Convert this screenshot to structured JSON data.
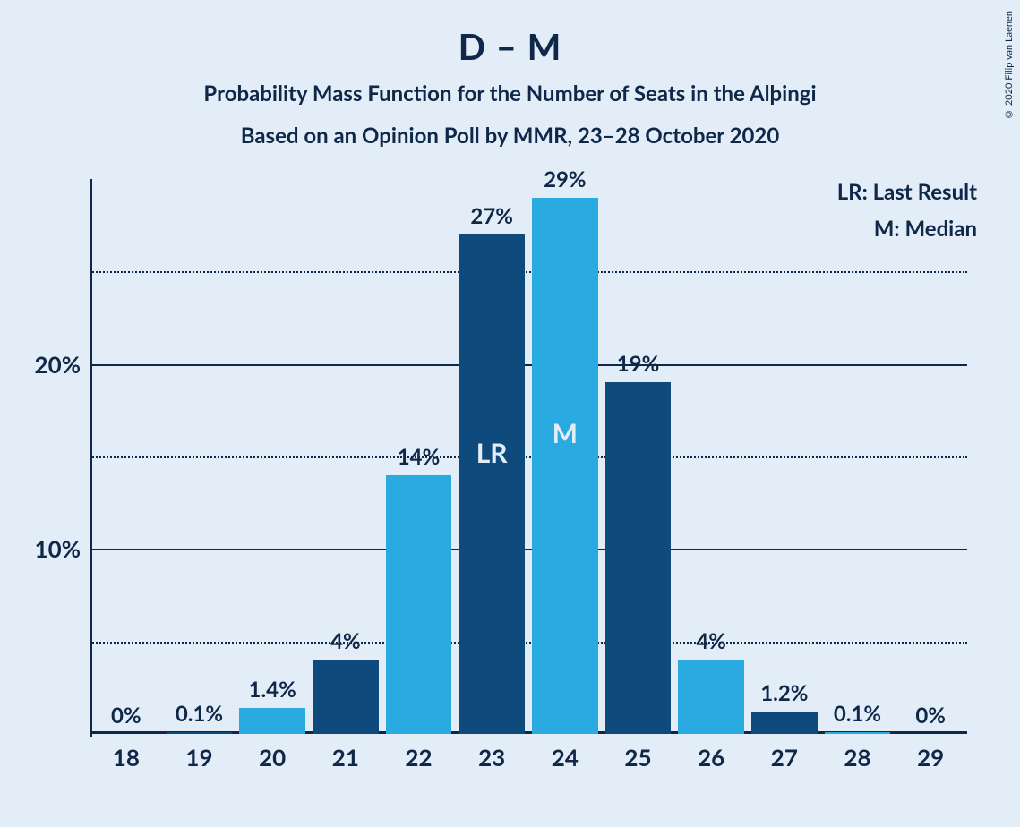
{
  "title": "D – M",
  "subtitle": "Probability Mass Function for the Number of Seats in the Alþingi",
  "poll_line": "Based on an Opinion Poll by MMR, 23–28 October 2020",
  "copyright": "© 2020 Filip van Laenen",
  "legend": {
    "lr": "LR: Last Result",
    "m": "M: Median"
  },
  "chart": {
    "type": "bar",
    "background_color": "#e3edf7",
    "text_color": "#0f2849",
    "bar_color_dark": "#0e4a7b",
    "bar_color_light": "#29abe2",
    "title_fontsize": 40,
    "subtitle_fontsize": 24,
    "label_fontsize": 24,
    "tick_fontsize": 26,
    "inner_label_fontsize": 30,
    "y": {
      "min": 0,
      "max": 30,
      "major_ticks": [
        10,
        20
      ],
      "minor_ticks": [
        5,
        15,
        25
      ],
      "major_style": "solid",
      "minor_style": "dotted",
      "grid_color": "#0f2849",
      "tick_labels": {
        "10": "10%",
        "20": "20%"
      }
    },
    "categories": [
      "18",
      "19",
      "20",
      "21",
      "22",
      "23",
      "24",
      "25",
      "26",
      "27",
      "28",
      "29"
    ],
    "values": [
      0.0,
      0.1,
      1.4,
      4.0,
      14.0,
      27.0,
      29.0,
      19.0,
      4.0,
      1.2,
      0.1,
      0.0
    ],
    "value_labels": [
      "0%",
      "0.1%",
      "1.4%",
      "4%",
      "14%",
      "27%",
      "29%",
      "19%",
      "4%",
      "1.2%",
      "0.1%",
      "0%"
    ],
    "bar_shades": [
      "light",
      "dark",
      "light",
      "dark",
      "light",
      "dark",
      "light",
      "dark",
      "light",
      "dark",
      "light",
      "dark"
    ],
    "inner_labels": {
      "23": "LR",
      "24": "M"
    },
    "bar_width_ratio": 0.9
  }
}
